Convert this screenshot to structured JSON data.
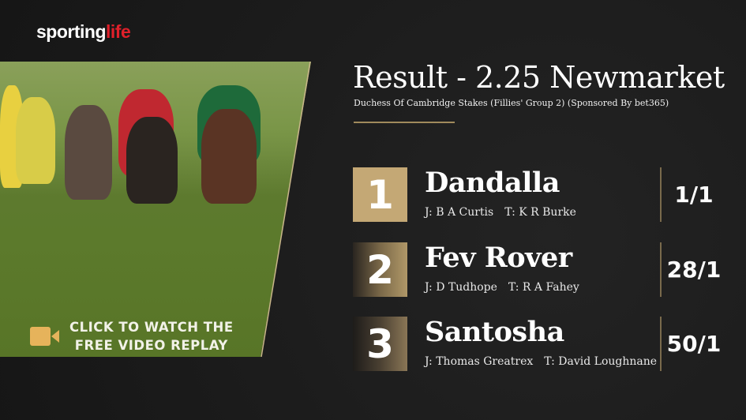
{
  "brand": {
    "logo_part1": "sporting",
    "logo_part2": "life",
    "accent": "#e0202a"
  },
  "video": {
    "cta_line1": "CLICK TO WATCH THE",
    "cta_line2": "FREE VIDEO REPLAY",
    "icon": "video-camera-icon"
  },
  "header": {
    "title": "Result - 2.25 Newmarket",
    "subtitle": "Duchess Of Cambridge Stakes (Fillies' Group 2) (Sponsored By bet365)"
  },
  "colors": {
    "gold": "#c4a875",
    "background": "#1c1c1c"
  },
  "results": [
    {
      "position": "1",
      "horse": "Dandalla",
      "jockey": "J: B A Curtis",
      "trainer": "T: K R Burke",
      "odds": "1/1"
    },
    {
      "position": "2",
      "horse": "Fev Rover",
      "jockey": "J: D Tudhope",
      "trainer": "T: R A Fahey",
      "odds": "28/1"
    },
    {
      "position": "3",
      "horse": "Santosha",
      "jockey": "J: Thomas Greatrex",
      "trainer": "T: David Loughnane",
      "odds": "50/1"
    }
  ]
}
